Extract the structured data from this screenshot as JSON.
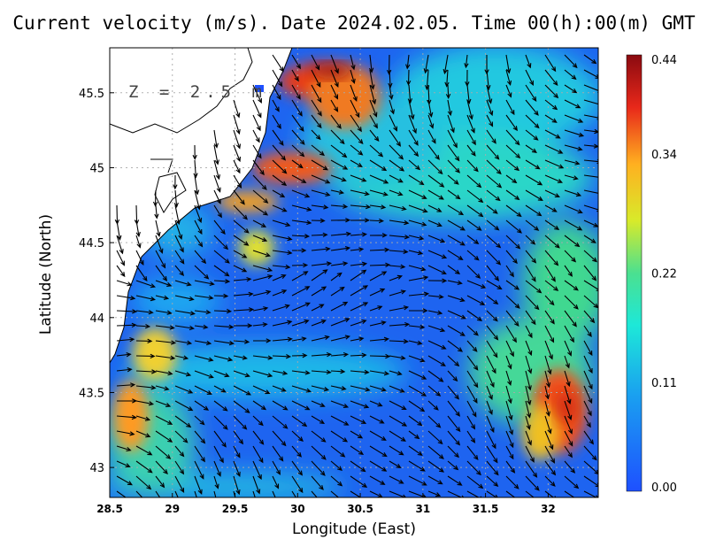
{
  "title": "Current velocity (m/s). Date 2024.02.05. Time 00(h):00(m) GMT",
  "depth_label": "Z = 2.5 m",
  "xlabel": "Longitude (East)",
  "ylabel": "Latitude (North)",
  "x_ticks": [
    "28.5",
    "29",
    "29.5",
    "30",
    "30.5",
    "31",
    "31.5",
    "32"
  ],
  "y_ticks": [
    "43",
    "43.5",
    "44",
    "44.5",
    "45",
    "45.5"
  ],
  "colorbar_ticks": [
    "0.44",
    "0.34",
    "0.22",
    "0.11",
    "0.00"
  ],
  "chart_data": {
    "type": "heatmap",
    "title": "Current velocity (m/s). Date 2024.02.05. Time 00(h):00(m) GMT",
    "xlabel": "Longitude (East)",
    "ylabel": "Latitude (North)",
    "xlim": [
      28.5,
      32.4
    ],
    "ylim": [
      42.8,
      45.8
    ],
    "colorbar": {
      "min": 0.0,
      "max": 0.44,
      "ticks": [
        0.44,
        0.34,
        0.22,
        0.11,
        0.0
      ]
    },
    "grid": true,
    "hotspots": [
      {
        "lon": 30.25,
        "lat": 45.65,
        "speed": 0.44
      },
      {
        "lon": 29.85,
        "lat": 45.0,
        "speed": 0.4
      },
      {
        "lon": 29.5,
        "lat": 44.75,
        "speed": 0.38
      },
      {
        "lon": 28.65,
        "lat": 43.35,
        "speed": 0.38
      },
      {
        "lon": 32.1,
        "lat": 43.35,
        "speed": 0.42
      },
      {
        "lon": 29.7,
        "lat": 44.45,
        "speed": 0.28
      }
    ]
  }
}
